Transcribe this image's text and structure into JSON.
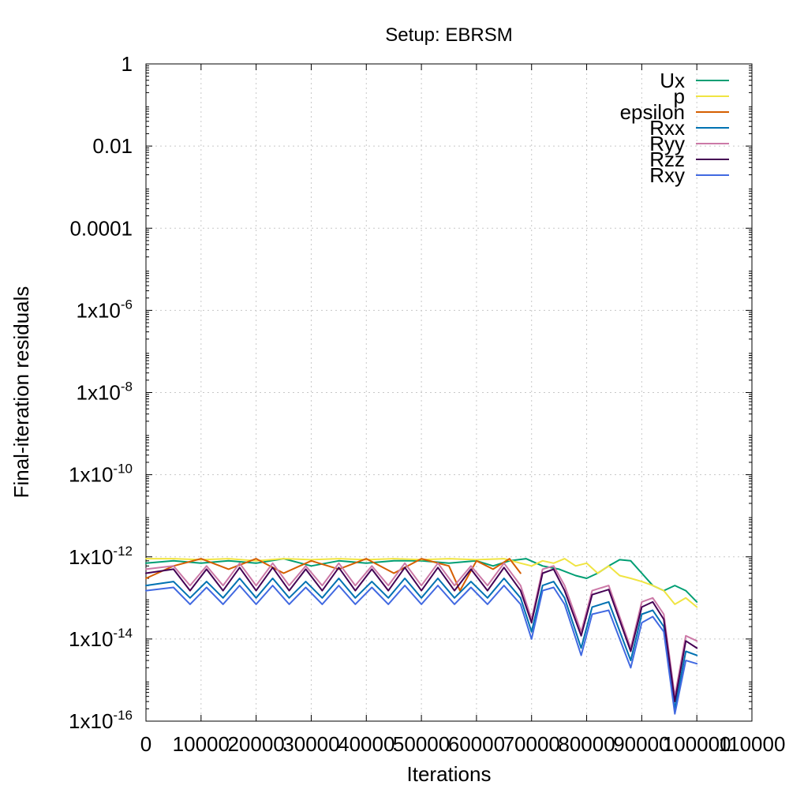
{
  "chart_data": {
    "type": "line",
    "title": "Setup: EBRSM",
    "xlabel": "Iterations",
    "ylabel": "Final-iteration residuals",
    "xlim": [
      0,
      110000
    ],
    "ylim": [
      1e-16,
      1
    ],
    "yscale": "log",
    "grid": true,
    "legend_position": "top-right",
    "x_ticks": [
      {
        "value": 0,
        "label": "0"
      },
      {
        "value": 10000,
        "label": "10000"
      },
      {
        "value": 20000,
        "label": "20000"
      },
      {
        "value": 30000,
        "label": "30000"
      },
      {
        "value": 40000,
        "label": "40000"
      },
      {
        "value": 50000,
        "label": "50000"
      },
      {
        "value": 60000,
        "label": "60000"
      },
      {
        "value": 70000,
        "label": "70000"
      },
      {
        "value": 80000,
        "label": "80000"
      },
      {
        "value": 90000,
        "label": "90000"
      },
      {
        "value": 100000,
        "label": "100000"
      },
      {
        "value": 110000,
        "label": "110000"
      }
    ],
    "y_ticks": [
      {
        "value": 1,
        "base": "1",
        "exp": ""
      },
      {
        "value": 0.01,
        "base": "0.01",
        "exp": ""
      },
      {
        "value": 0.0001,
        "base": "0.0001",
        "exp": ""
      },
      {
        "value": 1e-06,
        "base": "1x10",
        "exp": "-6"
      },
      {
        "value": 1e-08,
        "base": "1x10",
        "exp": "-8"
      },
      {
        "value": 1e-10,
        "base": "1x10",
        "exp": "-10"
      },
      {
        "value": 1e-12,
        "base": "1x10",
        "exp": "-12"
      },
      {
        "value": 1e-14,
        "base": "1x10",
        "exp": "-14"
      },
      {
        "value": 1e-16,
        "base": "1x10",
        "exp": "-16"
      }
    ],
    "series": [
      {
        "name": "Ux",
        "color": "#009e73",
        "x": [
          0,
          5000,
          10000,
          15000,
          20000,
          25000,
          30000,
          35000,
          40000,
          45000,
          50000,
          55000,
          60000,
          63000,
          66000,
          69000,
          72000,
          75000,
          78000,
          80000,
          82000,
          84000,
          86000,
          88000,
          90000,
          92000,
          94000,
          96000,
          98000,
          100000
        ],
        "y": [
          7e-13,
          8e-13,
          7e-13,
          8e-13,
          7e-13,
          9e-13,
          6e-13,
          8e-13,
          7e-13,
          8e-13,
          8e-13,
          7e-13,
          8e-13,
          6e-13,
          8e-13,
          9e-13,
          6e-13,
          5e-13,
          3.5e-13,
          3e-13,
          4e-13,
          6e-13,
          8.5e-13,
          8e-13,
          4e-13,
          2e-13,
          1.5e-13,
          2e-13,
          1.5e-13,
          8e-14
        ]
      },
      {
        "name": "p",
        "color": "#f0e442",
        "x": [
          0,
          5000,
          10000,
          15000,
          20000,
          25000,
          30000,
          35000,
          40000,
          45000,
          50000,
          55000,
          60000,
          65000,
          68000,
          70000,
          72000,
          74000,
          76000,
          78000,
          80000,
          82000,
          84000,
          86000,
          88000,
          90000,
          92000,
          94000,
          96000,
          98000,
          100000
        ],
        "y": [
          9e-13,
          9e-13,
          8.5e-13,
          9e-13,
          8e-13,
          9e-13,
          8.5e-13,
          9e-13,
          8.5e-13,
          9e-13,
          8.5e-13,
          9e-13,
          8.5e-13,
          9e-13,
          7e-13,
          6e-13,
          8e-13,
          7e-13,
          9e-13,
          6e-13,
          7e-13,
          4e-13,
          6e-13,
          3.5e-13,
          3e-13,
          2.5e-13,
          2e-13,
          1.5e-13,
          7e-14,
          1e-13,
          6e-14
        ]
      },
      {
        "name": "epsilon",
        "color": "#d55e00",
        "x": [
          0,
          5000,
          10000,
          15000,
          20000,
          25000,
          30000,
          35000,
          40000,
          45000,
          50000,
          55000,
          57000,
          60000,
          63000,
          66000,
          68000
        ],
        "y": [
          3e-13,
          6e-13,
          9e-13,
          5e-13,
          9e-13,
          4e-13,
          8e-13,
          5e-13,
          9e-13,
          4e-13,
          9e-13,
          6e-13,
          1.5e-13,
          8e-13,
          5e-13,
          9e-13,
          4e-13
        ]
      },
      {
        "name": "Rxx",
        "color": "#0072b2",
        "x": [
          0,
          5000,
          8000,
          11000,
          14000,
          17000,
          20000,
          23000,
          26000,
          29000,
          32000,
          35000,
          38000,
          41000,
          44000,
          47000,
          50000,
          53000,
          56000,
          59000,
          62000,
          65000,
          68000,
          70000,
          72000,
          74000,
          76000,
          79000,
          81000,
          84000,
          88000,
          90000,
          92000,
          94000,
          96000,
          98000,
          100000
        ],
        "y": [
          2e-13,
          2.5e-13,
          1e-13,
          2.5e-13,
          1e-13,
          3e-13,
          1e-13,
          3e-13,
          1e-13,
          2.5e-13,
          1e-13,
          3e-13,
          1e-13,
          2.5e-13,
          1e-13,
          3e-13,
          1e-13,
          3e-13,
          1e-13,
          2.5e-13,
          1e-13,
          3e-13,
          1e-13,
          1.5e-14,
          2e-13,
          2.5e-13,
          1e-13,
          6e-15,
          6e-14,
          8e-14,
          3e-15,
          4e-14,
          5e-14,
          2e-14,
          2e-16,
          5e-15,
          4e-15
        ]
      },
      {
        "name": "Ryy",
        "color": "#cc79a7",
        "x": [
          0,
          5000,
          8000,
          11000,
          14000,
          17000,
          20000,
          23000,
          26000,
          29000,
          32000,
          35000,
          38000,
          41000,
          44000,
          47000,
          50000,
          53000,
          56000,
          59000,
          62000,
          65000,
          68000,
          70000,
          72000,
          74000,
          76000,
          79000,
          81000,
          84000,
          88000,
          90000,
          92000,
          94000,
          96000,
          98000,
          100000
        ],
        "y": [
          5e-13,
          6e-13,
          2e-13,
          6e-13,
          2e-13,
          7e-13,
          2e-13,
          7e-13,
          2e-13,
          6e-13,
          2e-13,
          7e-13,
          2e-13,
          6e-13,
          2e-13,
          7e-13,
          2e-13,
          7e-13,
          2e-13,
          6e-13,
          2e-13,
          7e-13,
          2e-13,
          3e-14,
          5e-13,
          6e-13,
          2e-13,
          1.5e-14,
          1.5e-13,
          2e-13,
          6e-15,
          8e-14,
          1e-13,
          4e-14,
          4e-16,
          1.2e-14,
          9e-15
        ]
      },
      {
        "name": "Rzz",
        "color": "#440154",
        "x": [
          0,
          5000,
          8000,
          11000,
          14000,
          17000,
          20000,
          23000,
          26000,
          29000,
          32000,
          35000,
          38000,
          41000,
          44000,
          47000,
          50000,
          53000,
          56000,
          59000,
          62000,
          65000,
          68000,
          70000,
          72000,
          74000,
          76000,
          79000,
          81000,
          84000,
          88000,
          90000,
          92000,
          94000,
          96000,
          98000,
          100000
        ],
        "y": [
          4e-13,
          5e-13,
          1.5e-13,
          5e-13,
          1.5e-13,
          5.5e-13,
          1.5e-13,
          5.5e-13,
          1.5e-13,
          5e-13,
          1.5e-13,
          5.5e-13,
          1.5e-13,
          5e-13,
          1.5e-13,
          5.5e-13,
          1.5e-13,
          5.5e-13,
          1.5e-13,
          5e-13,
          1.5e-13,
          5.5e-13,
          1.5e-13,
          2.5e-14,
          4e-13,
          5e-13,
          1.5e-13,
          1.2e-14,
          1.2e-13,
          1.6e-13,
          5e-15,
          6e-14,
          8e-14,
          3e-14,
          3e-16,
          9e-15,
          6e-15
        ]
      },
      {
        "name": "Rxy",
        "color": "#4169e1",
        "x": [
          0,
          5000,
          8000,
          11000,
          14000,
          17000,
          20000,
          23000,
          26000,
          29000,
          32000,
          35000,
          38000,
          41000,
          44000,
          47000,
          50000,
          53000,
          56000,
          59000,
          62000,
          65000,
          68000,
          70000,
          72000,
          74000,
          76000,
          79000,
          81000,
          84000,
          88000,
          90000,
          92000,
          94000,
          96000,
          98000,
          100000
        ],
        "y": [
          1.5e-13,
          1.8e-13,
          7e-14,
          1.8e-13,
          7e-14,
          2e-13,
          7e-14,
          2e-13,
          7e-14,
          1.8e-13,
          7e-14,
          2e-13,
          7e-14,
          1.8e-13,
          7e-14,
          2e-13,
          7e-14,
          2e-13,
          7e-14,
          1.8e-13,
          7e-14,
          2e-13,
          7e-14,
          1e-14,
          1.5e-13,
          1.8e-13,
          7e-14,
          4e-15,
          4e-14,
          5e-14,
          2e-15,
          2.5e-14,
          3.5e-14,
          1.5e-14,
          1.5e-16,
          3e-15,
          2.5e-15
        ]
      }
    ]
  }
}
